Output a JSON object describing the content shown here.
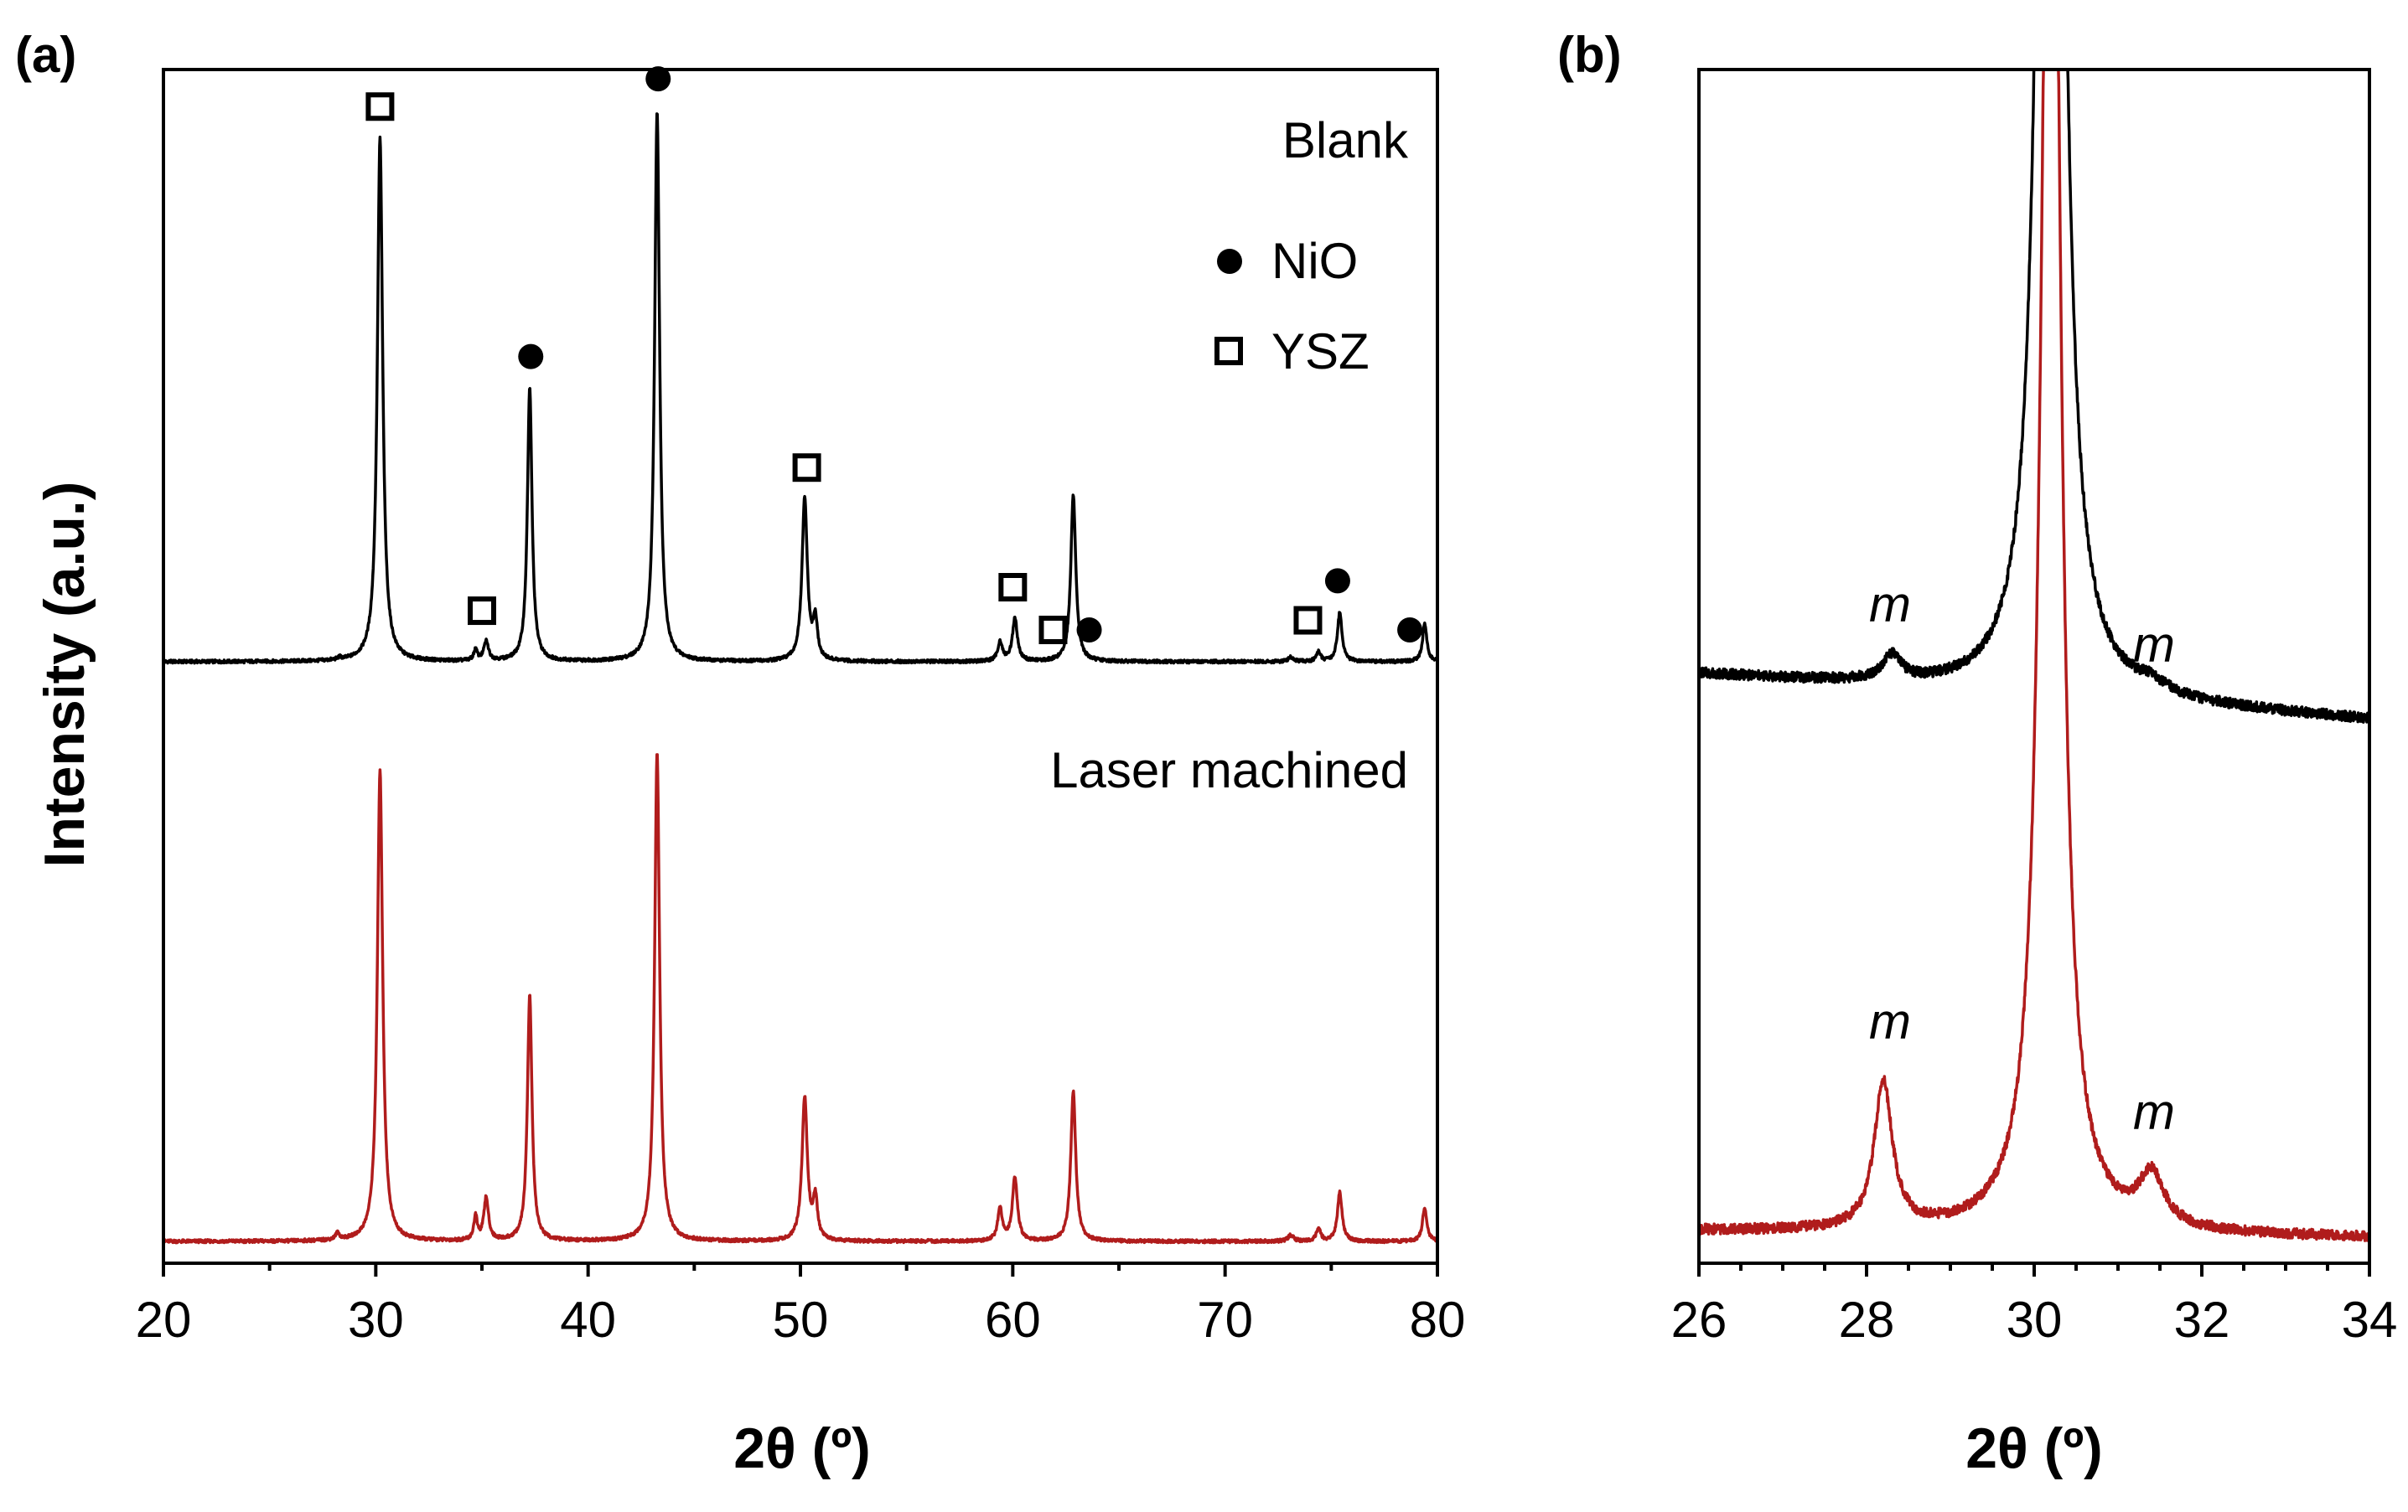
{
  "chart_data": [
    {
      "type": "line",
      "panel_label": "(a)",
      "title": "",
      "xlabel": "2θ (º)",
      "ylabel": "Intensity (a.u.)",
      "xlim": [
        20,
        80
      ],
      "x_ticks": [
        "20",
        "30",
        "40",
        "50",
        "60",
        "70",
        "80"
      ],
      "y_ticks": [],
      "grid": false,
      "series": [
        {
          "name": "Blank",
          "color": "#000000",
          "baseline": 1.0,
          "peaks": [
            [
              28.3,
              0.1,
              0.1
            ],
            [
              30.2,
              24.5,
              0.15
            ],
            [
              34.7,
              0.5,
              0.1
            ],
            [
              35.2,
              0.9,
              0.13
            ],
            [
              37.25,
              12.8,
              0.13
            ],
            [
              43.25,
              25.8,
              0.14
            ],
            [
              50.2,
              7.6,
              0.15
            ],
            [
              50.7,
              1.8,
              0.12
            ],
            [
              59.4,
              0.9,
              0.13
            ],
            [
              60.1,
              2.0,
              0.14
            ],
            [
              62.85,
              7.8,
              0.14
            ],
            [
              73.1,
              0.2,
              0.15
            ],
            [
              74.4,
              0.45,
              0.12
            ],
            [
              75.4,
              2.3,
              0.13
            ],
            [
              79.4,
              1.8,
              0.12
            ]
          ]
        },
        {
          "name": "Laser machined",
          "color": "#b01c1c",
          "baseline": 1.0,
          "peaks": [
            [
              28.2,
              0.3,
              0.12
            ],
            [
              30.2,
              22.0,
              0.15
            ],
            [
              34.7,
              1.1,
              0.1
            ],
            [
              35.2,
              2.0,
              0.13
            ],
            [
              37.25,
              11.5,
              0.13
            ],
            [
              43.25,
              22.9,
              0.14
            ],
            [
              50.2,
              6.7,
              0.15
            ],
            [
              50.7,
              1.9,
              0.12
            ],
            [
              59.4,
              1.5,
              0.13
            ],
            [
              60.1,
              3.0,
              0.14
            ],
            [
              62.85,
              7.0,
              0.14
            ],
            [
              73.1,
              0.3,
              0.15
            ],
            [
              74.4,
              0.6,
              0.12
            ],
            [
              75.4,
              2.3,
              0.13
            ],
            [
              79.4,
              1.6,
              0.12
            ]
          ]
        }
      ],
      "annotations": {
        "series_labels": [
          "Blank",
          "Laser machined"
        ],
        "legend": [
          {
            "symbol": "filled-circle",
            "label": "NiO"
          },
          {
            "symbol": "open-square",
            "label": "YSZ"
          }
        ],
        "legend_placement": "top-right",
        "NiO_peaks": [
          37.3,
          43.3,
          63.6,
          75.3,
          78.7
        ],
        "YSZ_peaks": [
          30.2,
          35.0,
          50.3,
          60.0,
          61.9,
          73.9
        ]
      }
    },
    {
      "type": "line",
      "panel_label": "(b)",
      "title": "",
      "xlabel": "2θ (º)",
      "ylabel": "",
      "xlim": [
        26,
        34
      ],
      "x_ticks": [
        "26",
        "28",
        "30",
        "32",
        "34"
      ],
      "y_ticks": [],
      "grid": false,
      "series": [
        {
          "name": "Blank",
          "color": "#000000",
          "baseline": [
            [
              26,
              1.0
            ],
            [
              34,
              0.0
            ]
          ],
          "peaks": [
            [
              28.3,
              0.55,
              0.14
            ],
            [
              30.2,
              60.0,
              0.11
            ],
            [
              31.4,
              0.2,
              0.2
            ]
          ]
        },
        {
          "name": "Laser machined",
          "color": "#b01c1c",
          "baseline": [
            [
              26,
              0.15
            ],
            [
              34,
              0.0
            ]
          ],
          "peaks": [
            [
              28.2,
              3.2,
              0.13
            ],
            [
              30.2,
              40.0,
              0.12
            ],
            [
              31.4,
              1.1,
              0.18
            ]
          ]
        }
      ],
      "annotations": {
        "monoclinic_label": "m",
        "m_peaks": [
          {
            "series": "Blank",
            "x": 28.25
          },
          {
            "series": "Blank",
            "x": 31.5
          },
          {
            "series": "Laser machined",
            "x": 28.2
          },
          {
            "series": "Laser machined",
            "x": 31.4
          }
        ]
      }
    }
  ]
}
